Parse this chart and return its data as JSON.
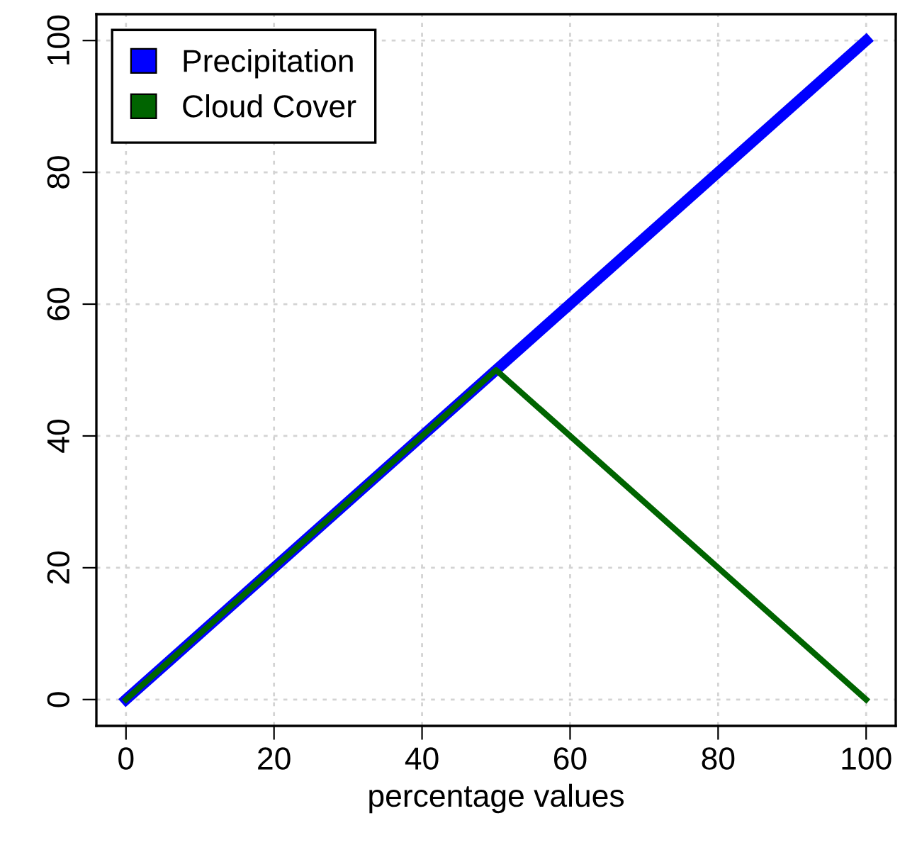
{
  "chart_data": {
    "type": "line",
    "xlabel": "percentage values",
    "x": [
      0,
      50,
      100
    ],
    "series": [
      {
        "name": "Precipitation",
        "color": "#0000ff",
        "values": [
          0,
          50,
          100
        ]
      },
      {
        "name": "Cloud Cover",
        "color": "#006400",
        "values": [
          0,
          50,
          0
        ]
      }
    ],
    "xlim": [
      -4,
      104
    ],
    "ylim": [
      -4,
      104
    ],
    "xticks": [
      0,
      20,
      40,
      60,
      80,
      100
    ],
    "yticks": [
      0,
      20,
      40,
      60,
      80,
      100
    ],
    "grid": true,
    "legend": "top left",
    "marker": "none",
    "line_style": "solid"
  }
}
